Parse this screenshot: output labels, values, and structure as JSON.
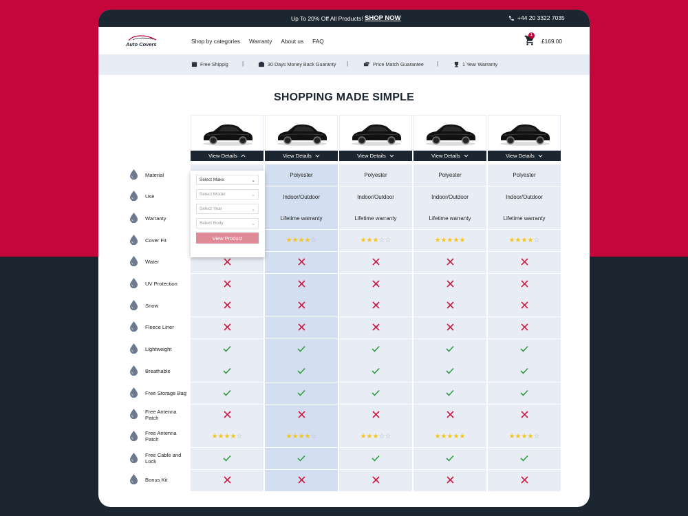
{
  "promo": {
    "text": "Up To 20% Off All Products!",
    "link": "SHOP NOW",
    "phone": "+44 20 3322 7035"
  },
  "nav": {
    "logo": "Auto Covers",
    "links": [
      "Shop by categories",
      "Warranty",
      "About us",
      "FAQ"
    ],
    "cart_count": "1",
    "cart_total": "£169.00"
  },
  "benefits": [
    "Free Shippig",
    "30 Days Money Back Guaranty",
    "Price Match Guarantee",
    "1 Year Warranty"
  ],
  "heading": "SHOPPING MADE SIMPLE",
  "view_details_label": "View Details",
  "dropdown": {
    "selects": [
      "Select Make",
      "Select Model",
      "Select Year",
      "Select Body"
    ],
    "button": "View Product"
  },
  "features": [
    {
      "label": "Material",
      "type": "text",
      "values": [
        "",
        "Polyester",
        "Polyester",
        "Polyester",
        "Polyester"
      ]
    },
    {
      "label": "Use",
      "type": "text",
      "values": [
        "",
        "Indoor/Outdoor",
        "Indoor/Outdoor",
        "Indoor/Outdoor",
        "Indoor/Outdoor"
      ]
    },
    {
      "label": "Warranty",
      "type": "text",
      "values": [
        "",
        "Lifetime warranty",
        "Lifetime warranty",
        "Lifetime warranty",
        "Lifetime warranty"
      ]
    },
    {
      "label": "Cover Fit",
      "type": "stars",
      "values": [
        0,
        4,
        3,
        5,
        4
      ]
    },
    {
      "label": "Water",
      "type": "bool",
      "values": [
        false,
        false,
        false,
        false,
        false
      ]
    },
    {
      "label": "UV Protection",
      "type": "bool",
      "values": [
        false,
        false,
        false,
        false,
        false
      ]
    },
    {
      "label": "Snow",
      "type": "bool",
      "values": [
        false,
        false,
        false,
        false,
        false
      ]
    },
    {
      "label": "Fleece Liner",
      "type": "bool",
      "values": [
        false,
        false,
        false,
        false,
        false
      ]
    },
    {
      "label": "Lightweight",
      "type": "bool",
      "values": [
        true,
        true,
        true,
        true,
        true
      ]
    },
    {
      "label": "Breathable",
      "type": "bool",
      "values": [
        true,
        true,
        true,
        true,
        true
      ]
    },
    {
      "label": "Free Storage Bag",
      "type": "bool",
      "values": [
        true,
        true,
        true,
        true,
        true
      ]
    },
    {
      "label": "Free Antenna Patch",
      "type": "bool",
      "values": [
        false,
        false,
        false,
        false,
        false
      ]
    },
    {
      "label": "Free Antenna Patch",
      "type": "stars",
      "values": [
        4,
        4,
        3,
        5,
        4
      ]
    },
    {
      "label": "Free Cable and Lock",
      "type": "bool",
      "values": [
        true,
        true,
        true,
        true,
        true
      ]
    },
    {
      "label": "Bonus Kit",
      "type": "bool",
      "values": [
        false,
        false,
        false,
        false,
        false
      ]
    }
  ],
  "colors": {
    "accent": "#c4063a",
    "dark": "#1c2631",
    "check": "#2e9e3e",
    "cross": "#d0173f",
    "star": "#f5c518"
  }
}
